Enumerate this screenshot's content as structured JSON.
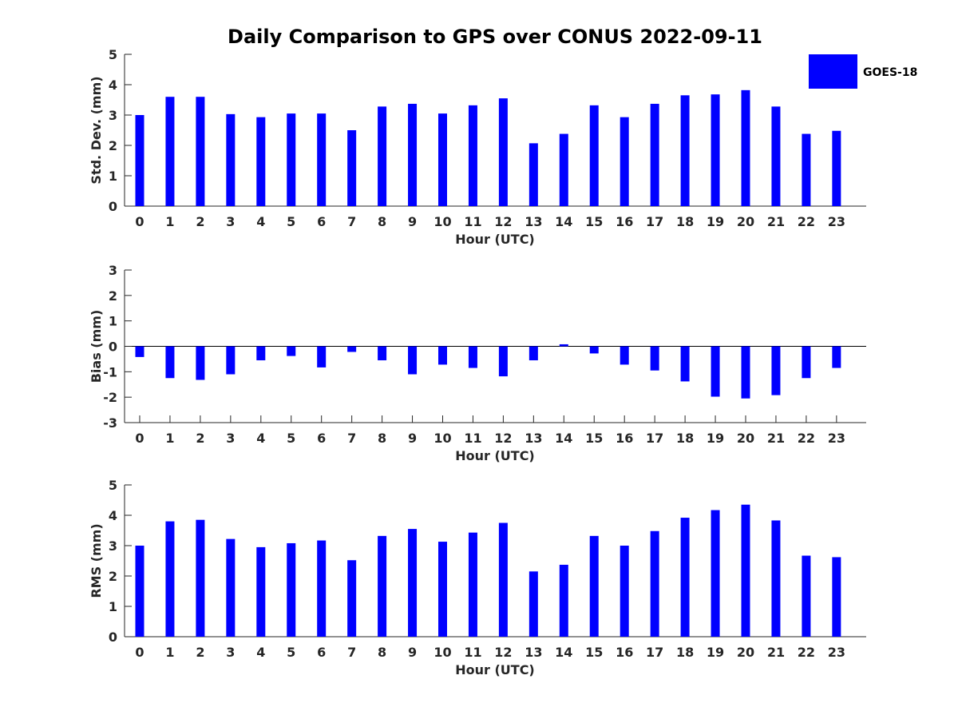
{
  "figure_title": "Daily Comparison to GPS over CONUS 2022-09-11",
  "legend": {
    "label": "GOES-18",
    "color": "#0000ff"
  },
  "chart_data": [
    {
      "type": "bar",
      "name": "std-dev",
      "series_name": "GOES-18",
      "color": "#0000ff",
      "xlabel": "Hour (UTC)",
      "ylabel": "Std. Dev. (mm)",
      "ylim": [
        0,
        5
      ],
      "yticks": [
        "0",
        "1",
        "2",
        "3",
        "4",
        "5"
      ],
      "categories": [
        "0",
        "1",
        "2",
        "3",
        "4",
        "5",
        "6",
        "7",
        "8",
        "9",
        "10",
        "11",
        "12",
        "13",
        "14",
        "15",
        "16",
        "17",
        "18",
        "19",
        "20",
        "21",
        "22",
        "23"
      ],
      "values": [
        3.0,
        3.6,
        3.6,
        3.03,
        2.93,
        3.05,
        3.05,
        2.5,
        3.28,
        3.37,
        3.05,
        3.32,
        3.55,
        2.07,
        2.38,
        3.32,
        2.93,
        3.37,
        3.65,
        3.68,
        3.82,
        3.28,
        2.38,
        2.48
      ]
    },
    {
      "type": "bar",
      "name": "bias",
      "series_name": "GOES-18",
      "color": "#0000ff",
      "xlabel": "Hour (UTC)",
      "ylabel": "Bias (mm)",
      "ylim": [
        -3,
        3
      ],
      "yticks": [
        "-3",
        "-2",
        "-1",
        "0",
        "1",
        "2",
        "3"
      ],
      "categories": [
        "0",
        "1",
        "2",
        "3",
        "4",
        "5",
        "6",
        "7",
        "8",
        "9",
        "10",
        "11",
        "12",
        "13",
        "14",
        "15",
        "16",
        "17",
        "18",
        "19",
        "20",
        "21",
        "22",
        "23"
      ],
      "values": [
        -0.42,
        -1.25,
        -1.32,
        -1.1,
        -0.55,
        -0.38,
        -0.83,
        -0.22,
        -0.55,
        -1.1,
        -0.72,
        -0.85,
        -1.18,
        -0.55,
        0.08,
        -0.28,
        -0.72,
        -0.95,
        -1.38,
        -1.98,
        -2.05,
        -1.92,
        -1.25,
        -0.85
      ]
    },
    {
      "type": "bar",
      "name": "rms",
      "series_name": "GOES-18",
      "color": "#0000ff",
      "xlabel": "Hour (UTC)",
      "ylabel": "RMS (mm)",
      "ylim": [
        0,
        5
      ],
      "yticks": [
        "0",
        "1",
        "2",
        "3",
        "4",
        "5"
      ],
      "categories": [
        "0",
        "1",
        "2",
        "3",
        "4",
        "5",
        "6",
        "7",
        "8",
        "9",
        "10",
        "11",
        "12",
        "13",
        "14",
        "15",
        "16",
        "17",
        "18",
        "19",
        "20",
        "21",
        "22",
        "23"
      ],
      "values": [
        3.0,
        3.8,
        3.85,
        3.22,
        2.95,
        3.08,
        3.17,
        2.52,
        3.32,
        3.55,
        3.13,
        3.43,
        3.75,
        2.15,
        2.37,
        3.32,
        3.0,
        3.48,
        3.92,
        4.17,
        4.35,
        3.83,
        2.67,
        2.62
      ]
    }
  ]
}
